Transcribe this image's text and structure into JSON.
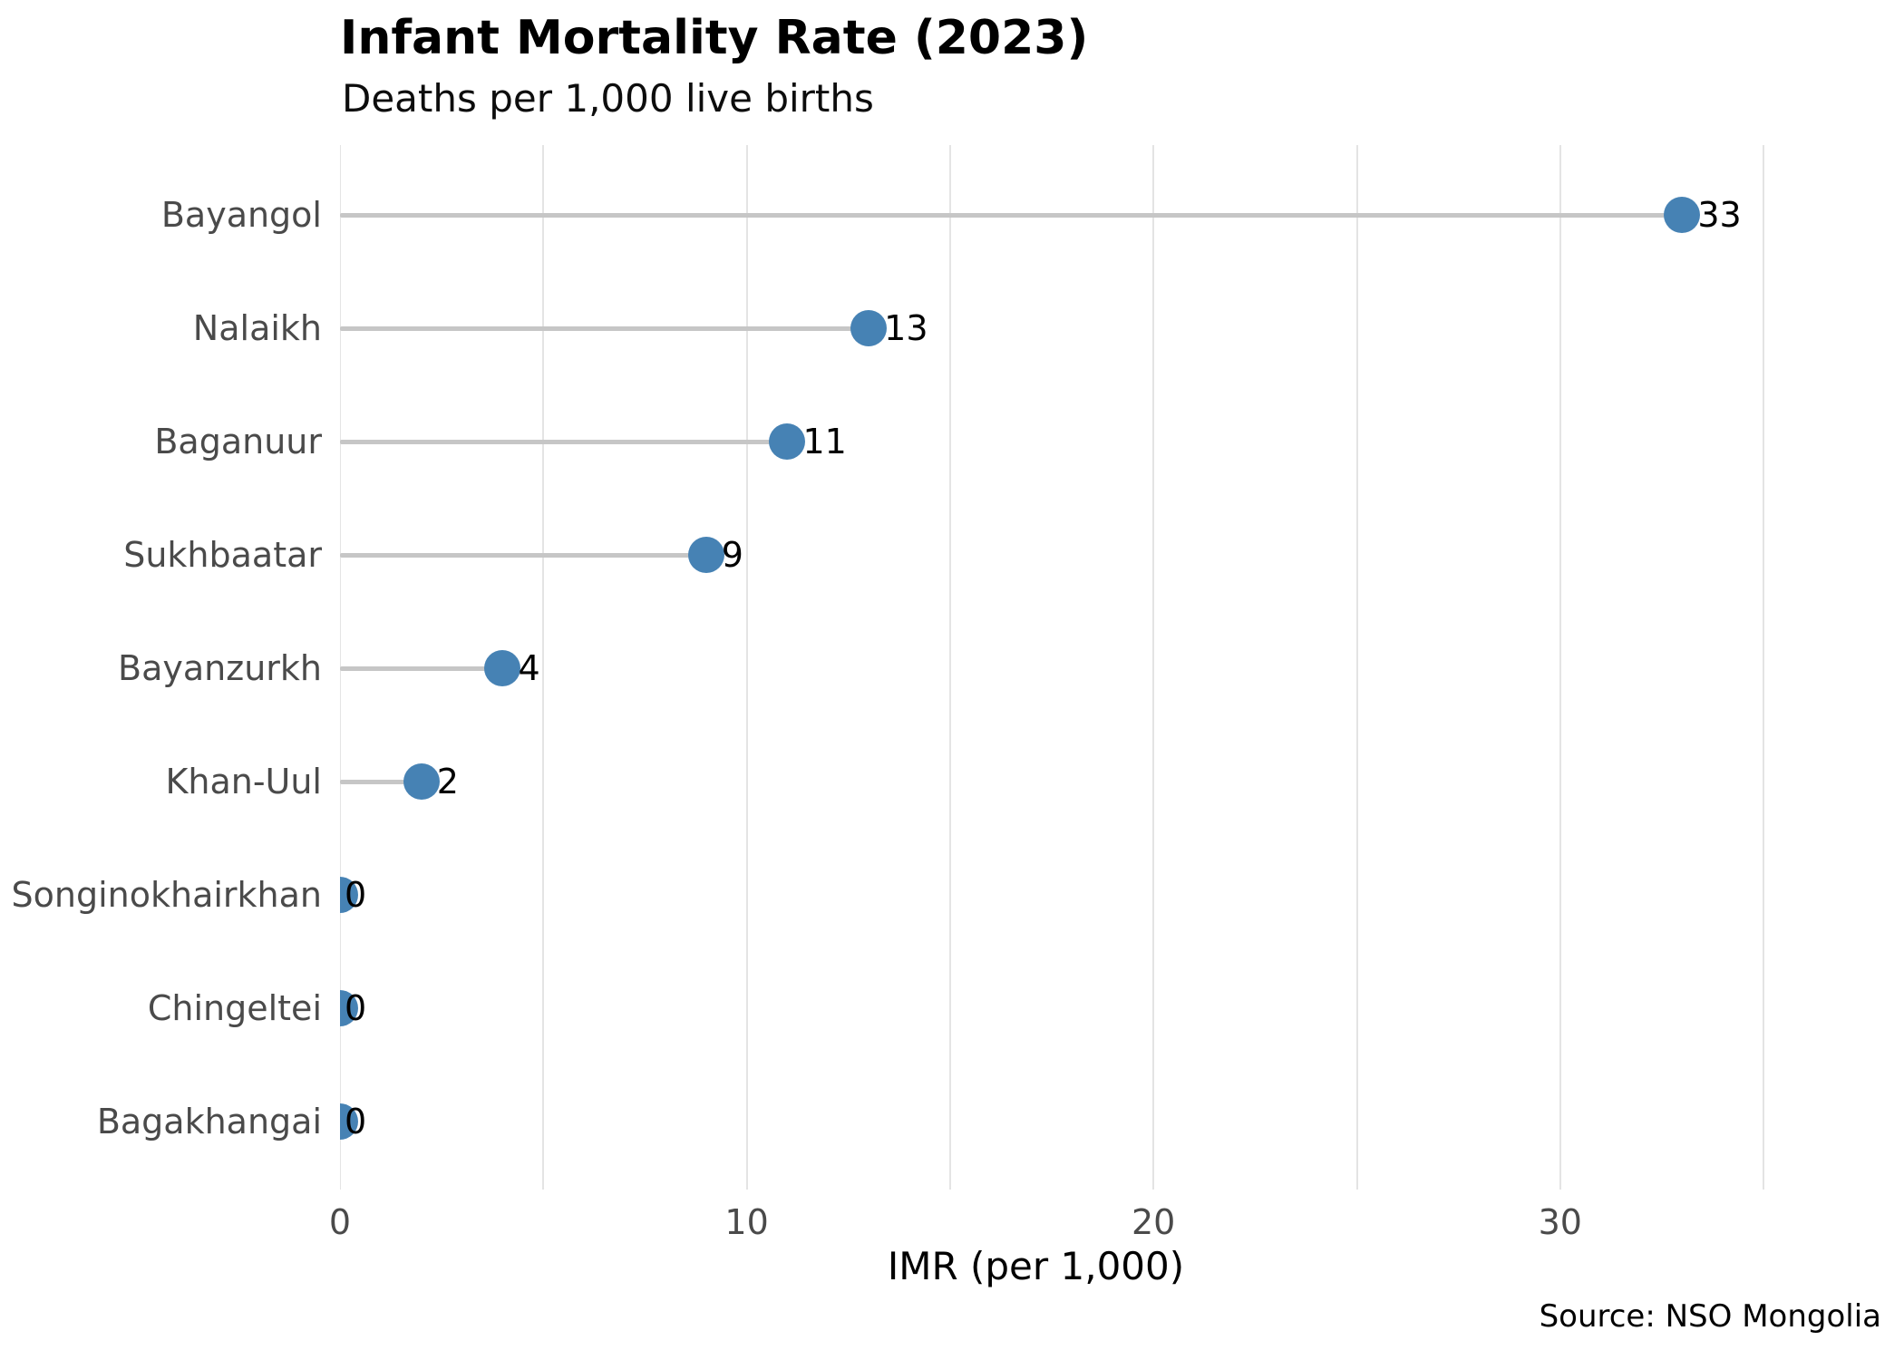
{
  "header": {
    "title": "Infant Mortality Rate (2023)",
    "subtitle": "Deaths per 1,000 live births"
  },
  "footer": {
    "source": "Source: NSO Mongolia"
  },
  "chart_data": {
    "type": "lollipop",
    "orientation": "horizontal",
    "title": "Infant Mortality Rate (2023)",
    "subtitle": "Deaths per 1,000 live births",
    "xlabel": "IMR (per 1,000)",
    "ylabel": "",
    "categories": [
      "Bayangol",
      "Nalaikh",
      "Baganuur",
      "Sukhbaatar",
      "Bayanzurkh",
      "Khan-Uul",
      "Songinokhairkhan",
      "Chingeltei",
      "Bagakhangai"
    ],
    "values": [
      33,
      13,
      11,
      9,
      4,
      2,
      0,
      0,
      0
    ],
    "value_labels": [
      "33",
      "13",
      "11",
      "9",
      "4",
      "2",
      "0",
      "0",
      "0"
    ],
    "xlim": [
      0,
      35.3
    ],
    "x_tick_values": [
      0,
      10,
      20,
      30
    ],
    "x_tick_labels": [
      "0",
      "10",
      "20",
      "30"
    ],
    "gridline_values": [
      0,
      5,
      10,
      15,
      20,
      25,
      30,
      35
    ],
    "grid": true,
    "legend": false,
    "source": "Source: NSO Mongolia",
    "colors": {
      "dot": "#4682B4",
      "stem": "#c6c6c6",
      "grid": "#e4e4e4",
      "tick_label": "#4a4a4a",
      "category_label": "#4a4a4a",
      "value_label": "#000000",
      "title": "#000000",
      "background": "#ffffff"
    }
  }
}
